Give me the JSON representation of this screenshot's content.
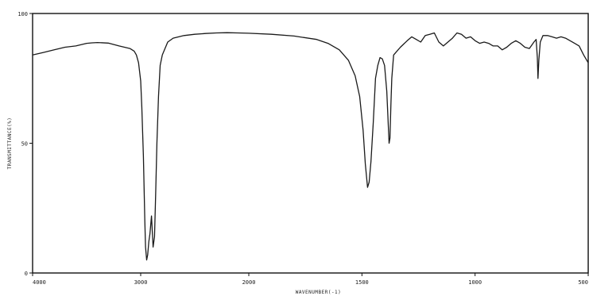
{
  "chart_data": {
    "type": "line",
    "xlabel": "WAVENUMBER(-1)",
    "ylabel": "TRANSMITTANCE(%)",
    "xlim": [
      4000,
      500
    ],
    "ylim": [
      0,
      100
    ],
    "x_ticks": [
      4000,
      3000,
      2000,
      1500,
      1000,
      500
    ],
    "x_tick_labels": [
      "4000",
      "3000",
      "2000",
      "1500",
      "1000",
      "500"
    ],
    "y_ticks": [
      0,
      50,
      100
    ],
    "y_tick_labels": [
      "0",
      "50",
      "100"
    ],
    "x_axis_scale": "segmented: 4000-2000 compressed, 2000-500 expanded",
    "series": [
      {
        "color": "#1a1a1a",
        "x": [
          4000,
          3900,
          3800,
          3700,
          3600,
          3500,
          3450,
          3400,
          3300,
          3200,
          3150,
          3100,
          3060,
          3040,
          3020,
          3000,
          2990,
          2975,
          2962,
          2955,
          2945,
          2935,
          2925,
          2915,
          2900,
          2885,
          2872,
          2862,
          2850,
          2835,
          2820,
          2800,
          2750,
          2700,
          2600,
          2500,
          2400,
          2300,
          2200,
          2100,
          2000,
          1900,
          1800,
          1700,
          1650,
          1600,
          1560,
          1530,
          1510,
          1495,
          1485,
          1475,
          1468,
          1460,
          1450,
          1440,
          1430,
          1420,
          1410,
          1400,
          1390,
          1380,
          1376,
          1372,
          1368,
          1360,
          1350,
          1330,
          1300,
          1280,
          1260,
          1240,
          1220,
          1200,
          1180,
          1160,
          1140,
          1120,
          1100,
          1080,
          1060,
          1040,
          1020,
          1000,
          980,
          960,
          940,
          920,
          900,
          880,
          860,
          840,
          820,
          800,
          780,
          760,
          740,
          730,
          725,
          722,
          718,
          712,
          700,
          680,
          660,
          640,
          620,
          600,
          580,
          560,
          540,
          520,
          500
        ],
        "y": [
          84,
          85,
          86,
          87,
          87.5,
          88.5,
          88.7,
          88.8,
          88.6,
          87.5,
          87,
          86.5,
          85.5,
          84,
          81,
          74,
          64,
          45,
          20,
          10,
          5,
          7,
          12,
          15,
          22,
          10,
          14,
          30,
          50,
          68,
          80,
          84,
          89,
          90.5,
          91.5,
          92,
          92.3,
          92.5,
          92.6,
          92.5,
          92.4,
          92,
          91.3,
          90,
          88.5,
          86,
          82,
          76,
          68,
          55,
          42,
          33,
          35,
          43,
          58,
          75,
          80,
          83,
          82.5,
          80,
          70,
          50,
          52,
          65,
          75,
          84,
          85,
          87,
          89.5,
          91,
          90,
          89,
          91.5,
          92,
          92.5,
          89,
          87.5,
          89,
          90.5,
          92.5,
          92,
          90.5,
          91,
          89.5,
          88.5,
          89,
          88.5,
          87.5,
          87.5,
          86,
          87,
          88.5,
          89.5,
          88.5,
          87,
          86.5,
          89,
          90,
          83,
          75,
          82,
          89,
          91.5,
          91.5,
          91,
          90.5,
          91,
          90.5,
          89.5,
          88.5,
          87.5,
          84,
          81
        ]
      }
    ]
  }
}
